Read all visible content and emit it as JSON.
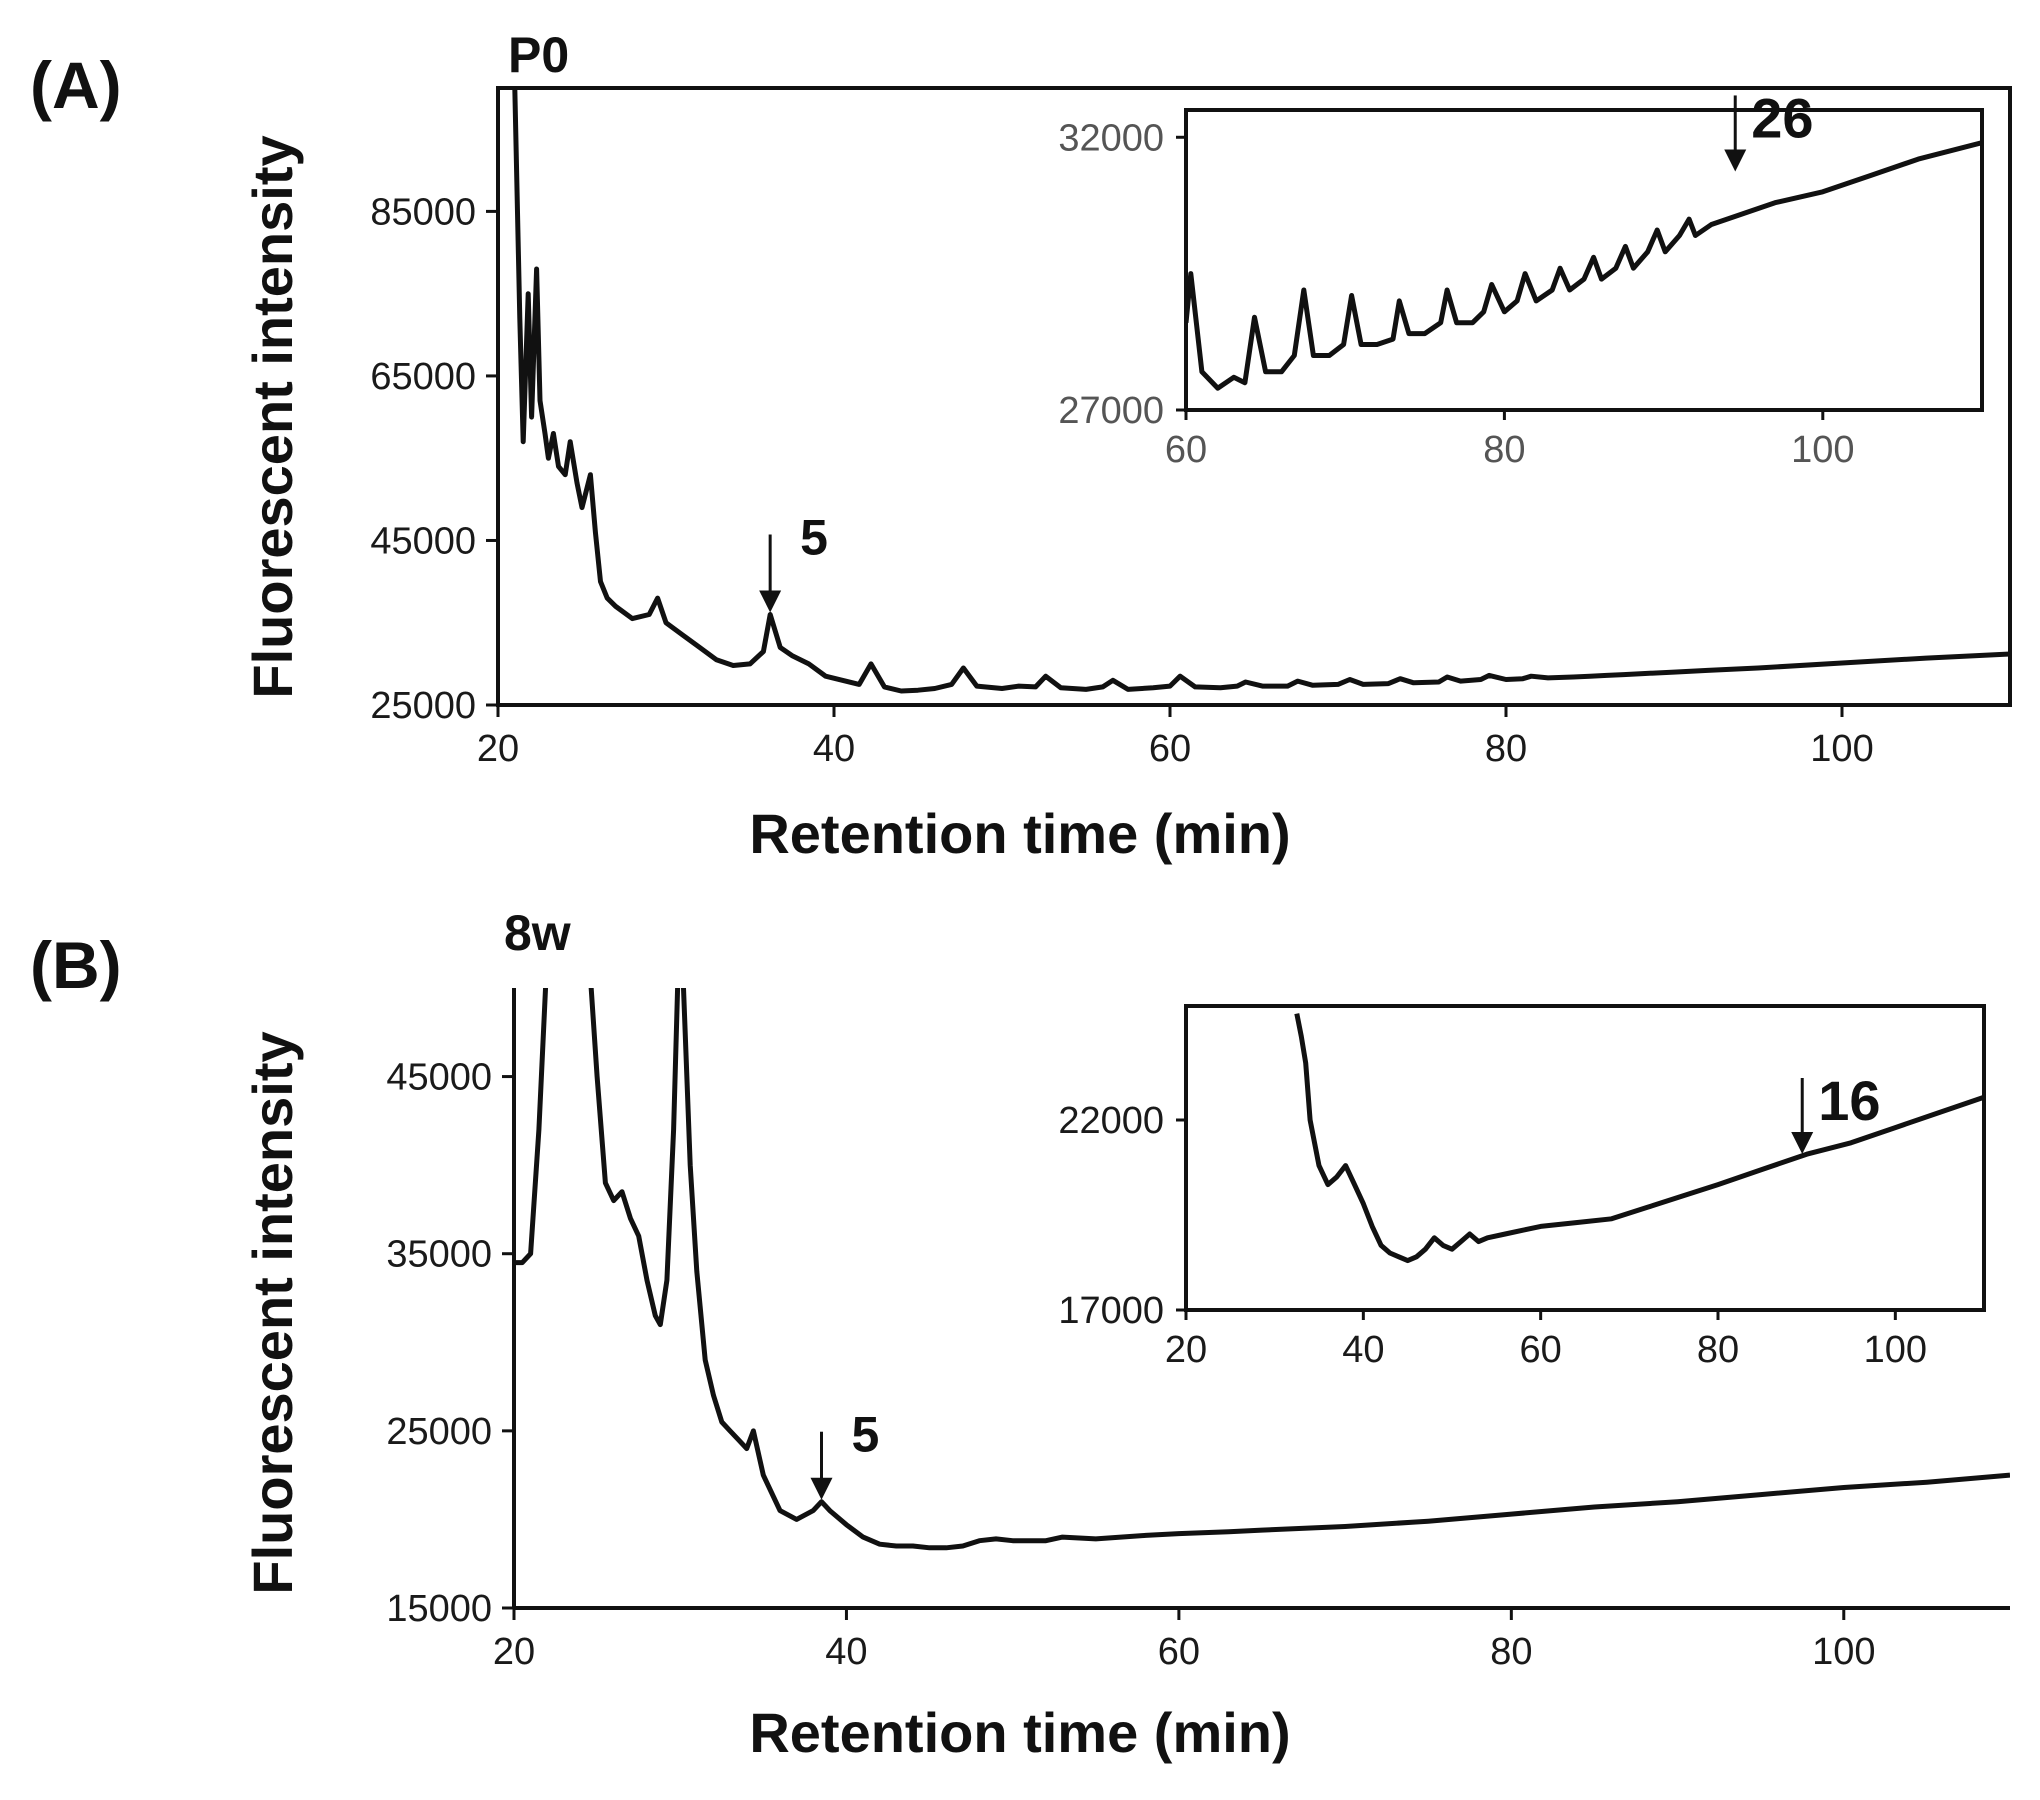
{
  "colors": {
    "trace": "#111111",
    "frame": "#111111",
    "background": "#ffffff"
  },
  "chart_data": [
    {
      "id": "A",
      "type": "line",
      "panel_label": "(A)",
      "sample_label": "P0",
      "xlabel": "Retention time (min)",
      "ylabel": "Fluorescent intensity",
      "xlim": [
        20,
        110
      ],
      "ylim": [
        25000,
        100000
      ],
      "xticks": [
        20,
        40,
        60,
        80,
        100
      ],
      "xtick_labels": [
        "20",
        "40",
        "60",
        "80",
        "100"
      ],
      "yticks": [
        25000,
        45000,
        65000,
        85000
      ],
      "ytick_labels": [
        "25000",
        "45000",
        "65000",
        "85000"
      ],
      "series": [
        {
          "name": "P0",
          "x": [
            21.0,
            21.3,
            21.5,
            21.8,
            22.0,
            22.3,
            22.5,
            22.8,
            23.0,
            23.3,
            23.6,
            24.0,
            24.3,
            24.7,
            25.0,
            25.5,
            25.8,
            26.1,
            26.5,
            27.0,
            28.0,
            29.0,
            29.5,
            30.0,
            31.0,
            32.0,
            33.0,
            34.0,
            35.0,
            35.8,
            36.2,
            36.8,
            37.5,
            38.5,
            39.5,
            40.5,
            41.5,
            42.2,
            43.0,
            44.0,
            45.0,
            46.0,
            47.0,
            47.7,
            48.5,
            50.0,
            51.0,
            52.0,
            52.6,
            53.5,
            55.0,
            56.0,
            56.6,
            57.5,
            59.0,
            60.0,
            60.6,
            61.5,
            63.0,
            64.0,
            64.5,
            65.5,
            67.0,
            67.6,
            68.5,
            70.0,
            70.7,
            71.5,
            73.0,
            73.7,
            74.5,
            76.0,
            76.5,
            77.3,
            78.5,
            79.0,
            80.0,
            81.0,
            81.5,
            82.5,
            84.0,
            85.0,
            86.0,
            87.0,
            88.0,
            90.0,
            92.0,
            95.0,
            100.0,
            105.0,
            110.0
          ],
          "y": [
            100000,
            72000,
            57000,
            75000,
            60000,
            78000,
            62000,
            58000,
            55000,
            58000,
            54000,
            53000,
            57000,
            52000,
            49000,
            53000,
            46000,
            40000,
            38000,
            37000,
            35500,
            36000,
            38000,
            35000,
            33500,
            32000,
            30500,
            29800,
            30000,
            31500,
            36000,
            32000,
            31000,
            30000,
            28500,
            28000,
            27500,
            30000,
            27200,
            26700,
            26800,
            27000,
            27500,
            29500,
            27300,
            27000,
            27300,
            27200,
            28500,
            27100,
            26900,
            27200,
            28000,
            26900,
            27100,
            27300,
            28500,
            27200,
            27100,
            27300,
            27800,
            27300,
            27300,
            27900,
            27400,
            27500,
            28100,
            27500,
            27600,
            28200,
            27700,
            27800,
            28400,
            27900,
            28100,
            28600,
            28100,
            28200,
            28500,
            28300,
            28400,
            28500,
            28600,
            28700,
            28800,
            29000,
            29200,
            29500,
            30100,
            30700,
            31200
          ]
        }
      ],
      "annotations": [
        {
          "text": "5",
          "x": 36.2,
          "y": 36000
        }
      ],
      "inset": {
        "xlim": [
          60,
          110
        ],
        "ylim": [
          27000,
          32500
        ],
        "xticks": [
          60,
          80,
          100
        ],
        "xtick_labels": [
          "60",
          "80",
          "100"
        ],
        "yticks": [
          27000,
          32000
        ],
        "ytick_labels": [
          "27000",
          "32000"
        ],
        "x": [
          60.0,
          60.3,
          61.0,
          62.0,
          63.0,
          63.7,
          64.3,
          65.0,
          66.0,
          66.8,
          67.4,
          68.0,
          69.0,
          69.9,
          70.4,
          71.0,
          72.0,
          73.0,
          73.4,
          74.0,
          75.0,
          76.0,
          76.4,
          77.0,
          78.0,
          78.7,
          79.2,
          80.0,
          80.8,
          81.3,
          82.0,
          83.0,
          83.5,
          84.1,
          85.0,
          85.6,
          86.1,
          87.0,
          87.6,
          88.1,
          89.0,
          89.6,
          90.1,
          91.0,
          91.6,
          92.0,
          93.0,
          95.0,
          97.0,
          100.0,
          103.0,
          106.0,
          110.0
        ],
        "y": [
          28600,
          29500,
          27700,
          27400,
          27600,
          27500,
          28700,
          27700,
          27700,
          28000,
          29200,
          28000,
          28000,
          28200,
          29100,
          28200,
          28200,
          28300,
          29000,
          28400,
          28400,
          28600,
          29200,
          28600,
          28600,
          28800,
          29300,
          28800,
          29000,
          29500,
          29000,
          29200,
          29600,
          29200,
          29400,
          29800,
          29400,
          29600,
          30000,
          29600,
          29900,
          30300,
          29900,
          30200,
          30500,
          30200,
          30400,
          30600,
          30800,
          31000,
          31300,
          31600,
          31900
        ]
      },
      "inset_annotation": {
        "text": "26",
        "x": 94.5,
        "y": 31300
      }
    },
    {
      "id": "B",
      "type": "line",
      "panel_label": "(B)",
      "sample_label": "8w",
      "xlabel": "Retention time (min)",
      "ylabel": "Fluorescent intensity",
      "xlim": [
        20,
        110
      ],
      "ylim": [
        15000,
        50000
      ],
      "xticks": [
        20,
        40,
        60,
        80,
        100
      ],
      "xtick_labels": [
        "20",
        "40",
        "60",
        "80",
        "100"
      ],
      "yticks": [
        15000,
        25000,
        35000,
        45000
      ],
      "ytick_labels": [
        "15000",
        "25000",
        "35000",
        "45000"
      ],
      "series": [
        {
          "name": "8w",
          "x": [
            20.0,
            20.5,
            21.0,
            21.5,
            22.0,
            22.5,
            23.0,
            24.5,
            25.0,
            25.5,
            26.0,
            26.5,
            27.0,
            27.5,
            28.0,
            28.5,
            28.8,
            29.2,
            29.6,
            29.9,
            30.2,
            30.6,
            31.0,
            31.5,
            32.0,
            32.5,
            33.0,
            33.5,
            34.0,
            34.4,
            35.0,
            36.0,
            37.0,
            38.0,
            38.5,
            39.0,
            40.0,
            41.0,
            42.0,
            43.0,
            44.0,
            45.0,
            46.0,
            47.0,
            48.0,
            49.0,
            50.0,
            52.0,
            53.0,
            55.0,
            58.0,
            60.0,
            63.0,
            65.0,
            70.0,
            75.0,
            80.0,
            85.0,
            90.0,
            95.0,
            100.0,
            105.0,
            110.0
          ],
          "y": [
            34500,
            34500,
            35000,
            42000,
            52000,
            55000,
            55000,
            52000,
            45000,
            39000,
            38000,
            38500,
            37000,
            36000,
            33500,
            31500,
            31000,
            33500,
            42000,
            52000,
            50000,
            40000,
            34000,
            29000,
            27000,
            25500,
            25000,
            24500,
            24000,
            25000,
            22500,
            20500,
            20000,
            20500,
            21000,
            20500,
            19700,
            19000,
            18600,
            18500,
            18500,
            18400,
            18400,
            18500,
            18800,
            18900,
            18800,
            18800,
            19000,
            18900,
            19100,
            19200,
            19300,
            19400,
            19600,
            19900,
            20300,
            20700,
            21000,
            21400,
            21800,
            22100,
            22500
          ]
        }
      ],
      "annotations": [
        {
          "text": "5",
          "x": 38.5,
          "y": 21000
        }
      ],
      "inset": {
        "xlim": [
          20,
          110
        ],
        "ylim": [
          17000,
          25000
        ],
        "xticks": [
          20,
          40,
          60,
          80,
          100
        ],
        "xtick_labels": [
          "20",
          "40",
          "60",
          "80",
          "100"
        ],
        "yticks": [
          17000,
          22000
        ],
        "ytick_labels": [
          "17000",
          "22000"
        ],
        "x": [
          32.5,
          33.0,
          33.5,
          34.0,
          35.0,
          36.0,
          37.0,
          38.0,
          39.0,
          40.0,
          41.0,
          42.0,
          43.0,
          44.0,
          45.0,
          46.0,
          47.0,
          48.0,
          49.0,
          50.0,
          51.0,
          52.0,
          53.0,
          54.0,
          56.0,
          58.0,
          60.0,
          64.0,
          68.0,
          72.0,
          76.0,
          80.0,
          85.0,
          90.0,
          95.0,
          100.0,
          105.0,
          110.0
        ],
        "y": [
          24800,
          24200,
          23500,
          22000,
          20800,
          20300,
          20500,
          20800,
          20300,
          19800,
          19200,
          18700,
          18500,
          18400,
          18300,
          18400,
          18600,
          18900,
          18700,
          18600,
          18800,
          19000,
          18800,
          18900,
          19000,
          19100,
          19200,
          19300,
          19400,
          19700,
          20000,
          20300,
          20700,
          21100,
          21400,
          21800,
          22200,
          22600
        ]
      },
      "inset_annotation": {
        "text": "16",
        "x": 89.5,
        "y": 21000
      }
    }
  ]
}
